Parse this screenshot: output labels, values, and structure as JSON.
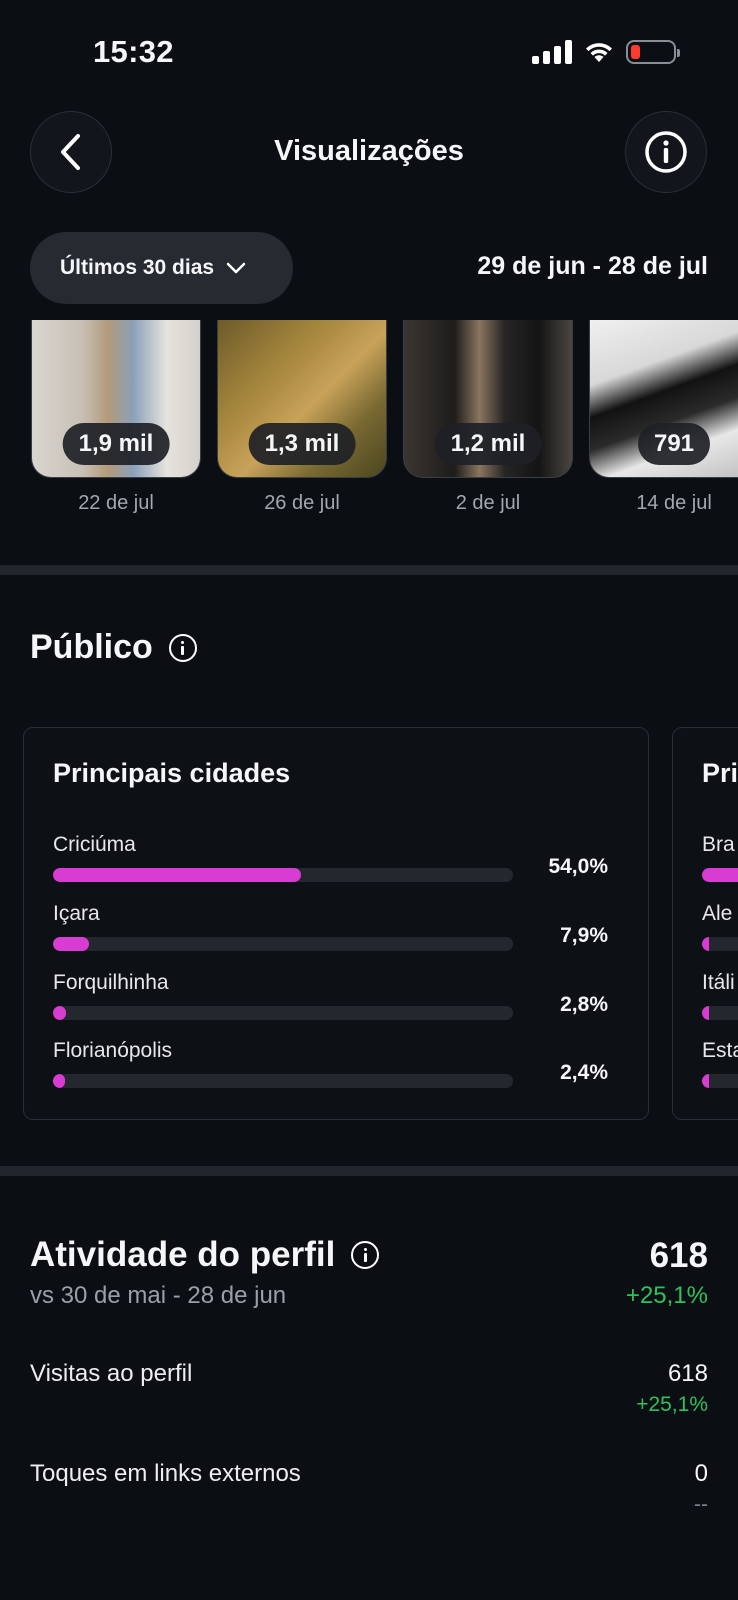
{
  "status": {
    "time": "15:32"
  },
  "header": {
    "title": "Visualizações"
  },
  "filter": {
    "period_label": "Últimos 30 dias",
    "date_range": "29 de jun - 28 de jul"
  },
  "thumbnails": [
    {
      "count": "1,9 mil",
      "date": "22 de jul"
    },
    {
      "count": "1,3 mil",
      "date": "26 de jul"
    },
    {
      "count": "1,2 mil",
      "date": "2 de jul"
    },
    {
      "count": "791",
      "date": "14 de jul"
    }
  ],
  "audience": {
    "title": "Público",
    "cities_card": {
      "title": "Principais cidades",
      "rows": [
        {
          "label": "Criciúma",
          "value": "54,0%",
          "fraction": 0.54
        },
        {
          "label": "Içara",
          "value": "7,9%",
          "fraction": 0.079
        },
        {
          "label": "Forquilhinha",
          "value": "2,8%",
          "fraction": 0.028
        },
        {
          "label": "Florianópolis",
          "value": "2,4%",
          "fraction": 0.024
        }
      ]
    },
    "countries_card": {
      "title": "Pri",
      "rows": [
        {
          "label": "Bra",
          "fraction": 0.9
        },
        {
          "label": "Ale",
          "fraction": 0.02
        },
        {
          "label": "Itáli",
          "fraction": 0.02
        },
        {
          "label": "Esta",
          "fraction": 0.02
        }
      ]
    }
  },
  "activity": {
    "title": "Atividade do perfil",
    "comparison": "vs 30 de mai - 28 de jun",
    "total": "618",
    "total_delta": "+25,1%",
    "metrics": [
      {
        "label": "Visitas ao perfil",
        "value": "618",
        "delta": "+25,1%"
      },
      {
        "label": "Toques em links externos",
        "value": "0",
        "delta": "--"
      }
    ]
  },
  "colors": {
    "accent_bar": "#d93cd3",
    "positive": "#2fc15c",
    "background": "#0b0e13"
  }
}
